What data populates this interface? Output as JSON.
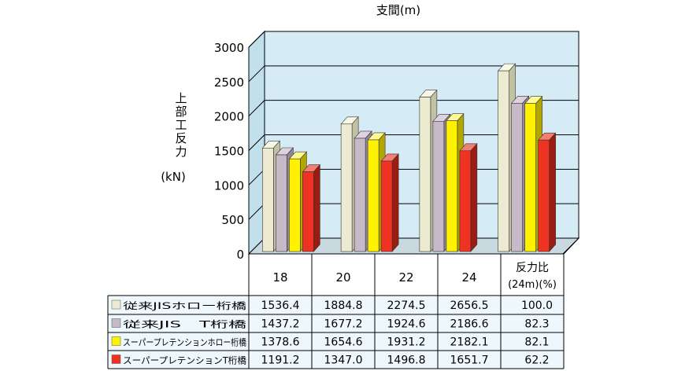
{
  "chart_data": {
    "type": "bar",
    "title": "支間(m)",
    "ylabel_chars": [
      "上",
      "部",
      "工",
      "反",
      "力"
    ],
    "ylabel_unit": "(kN)",
    "ylim": [
      0,
      3000
    ],
    "yticks": [
      "0",
      "500",
      "1000",
      "1500",
      "2000",
      "2500",
      "3000"
    ],
    "categories": [
      "18",
      "20",
      "22",
      "24"
    ],
    "grid": true,
    "legend": "table-bottom",
    "ratio_header": [
      "反力比",
      "(24m)(%)"
    ],
    "series": [
      {
        "name": "従来JISホロー桁橋",
        "values": [
          1536.4,
          1884.8,
          2274.5,
          2656.5
        ],
        "labels": [
          "1536.4",
          "1884.8",
          "2274.5",
          "2656.5"
        ],
        "ratio": "100.0",
        "color_front": "#ecebd2",
        "color_side": "#c3c1a3",
        "color_top": "#f8f7e6"
      },
      {
        "name": "従来JIS　T桁橋",
        "values": [
          1437.2,
          1677.2,
          1924.6,
          2186.6
        ],
        "labels": [
          "1437.2",
          "1677.2",
          "1924.6",
          "2186.6"
        ],
        "ratio": "82.3",
        "color_front": "#c6b9c8",
        "color_side": "#93869a",
        "color_top": "#ddd2de"
      },
      {
        "name": "スーパープレテンションホロー桁橋",
        "values": [
          1378.6,
          1654.6,
          1931.2,
          2182.1
        ],
        "labels": [
          "1378.6",
          "1654.6",
          "1931.2",
          "2182.1"
        ],
        "ratio": "82.1",
        "color_front": "#fff200",
        "color_side": "#b3a600",
        "color_top": "#fffa90"
      },
      {
        "name": "スーパープレテンションT桁橋",
        "values": [
          1191.2,
          1347.0,
          1496.8,
          1651.7
        ],
        "labels": [
          "1191.2",
          "1347.0",
          "1496.8",
          "1651.7"
        ],
        "ratio": "62.2",
        "color_front": "#ee3322",
        "color_side": "#9a1c12",
        "color_top": "#f47e72"
      }
    ],
    "colors": {
      "wall": "#d5ecf6",
      "floor": "#cad8e0",
      "table_bg": "#eef8fc",
      "line": "#000000"
    }
  }
}
